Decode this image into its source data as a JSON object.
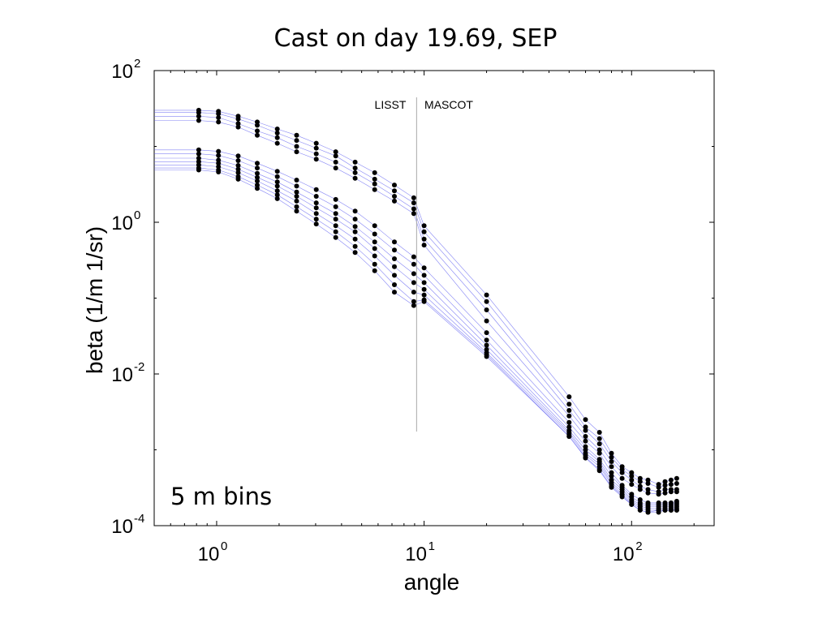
{
  "chart_data": {
    "type": "scatter",
    "title": "Cast on day 19.69, SEP",
    "xlabel": "angle",
    "ylabel": "beta (1/m 1/sr)",
    "x_scale": "log",
    "y_scale": "log",
    "xlim": [
      0.5,
      250
    ],
    "ylim": [
      0.0001,
      100
    ],
    "x_ticks": [
      {
        "base": "10",
        "exp": "0",
        "value": 1
      },
      {
        "base": "10",
        "exp": "1",
        "value": 10
      },
      {
        "base": "10",
        "exp": "2",
        "value": 100
      }
    ],
    "y_ticks": [
      {
        "base": "10",
        "exp": "2",
        "value": 100
      },
      {
        "base": "10",
        "exp": "0",
        "value": 1
      },
      {
        "base": "10",
        "exp": "-2",
        "value": 0.01
      },
      {
        "base": "10",
        "exp": "-4",
        "value": 0.0001
      }
    ],
    "annotations": {
      "left": "LISST",
      "right": "MASCOT",
      "bins": "5 m bins"
    },
    "divider_angle": 9.2,
    "line_color": "#5b5bf0",
    "marker_color": "#000000",
    "x": [
      0.82,
      1.02,
      1.27,
      1.57,
      1.96,
      2.43,
      3.02,
      3.75,
      4.65,
      5.78,
      7.19,
      8.92,
      10,
      20,
      50,
      60,
      70,
      80,
      90,
      100,
      110,
      120,
      135,
      145,
      155,
      165
    ],
    "series": [
      {
        "values": [
          30,
          29,
          25,
          21,
          17,
          14,
          11,
          8.5,
          6.2,
          4.5,
          3.1,
          2.1,
          0.9,
          0.11,
          0.005,
          0.0025,
          0.0017,
          0.0009,
          0.0006,
          0.0005,
          0.00042,
          0.0004,
          0.00035,
          0.00038,
          0.0004,
          0.00042
        ]
      },
      {
        "values": [
          28,
          27,
          23,
          19,
          15,
          12,
          9.5,
          7.5,
          5.2,
          3.7,
          2.6,
          1.8,
          0.75,
          0.09,
          0.004,
          0.002,
          0.0014,
          0.0008,
          0.00055,
          0.00045,
          0.00038,
          0.00036,
          0.00032,
          0.00034,
          0.00035,
          0.00036
        ]
      },
      {
        "values": [
          25,
          24,
          20,
          16,
          13,
          10,
          8,
          6.2,
          4.5,
          3.2,
          2.2,
          1.5,
          0.6,
          0.07,
          0.0033,
          0.0018,
          0.0012,
          0.0007,
          0.0005,
          0.0004,
          0.00033,
          0.0003,
          0.00028,
          0.0003,
          0.0003,
          0.0003
        ]
      },
      {
        "values": [
          22,
          21,
          18,
          14,
          11,
          8.5,
          6.8,
          5.2,
          3.8,
          2.7,
          1.9,
          1.3,
          0.5,
          0.05,
          0.0028,
          0.0015,
          0.001,
          0.0006,
          0.00042,
          0.00035,
          0.0003,
          0.00027,
          0.00026,
          0.00027,
          0.00028,
          0.00028
        ]
      },
      {
        "values": [
          9,
          8.6,
          7.5,
          6,
          4.7,
          3.6,
          2.7,
          2,
          1.4,
          0.9,
          0.55,
          0.35,
          0.25,
          0.035,
          0.0023,
          0.0013,
          0.0009,
          0.0005,
          0.00034,
          0.00026,
          0.00022,
          0.0002,
          0.0002,
          0.0002,
          0.0002,
          0.00021
        ]
      },
      {
        "values": [
          8,
          7.6,
          6.5,
          5.2,
          4,
          3,
          2.2,
          1.6,
          1.1,
          0.7,
          0.43,
          0.28,
          0.2,
          0.028,
          0.002,
          0.0011,
          0.00075,
          0.00045,
          0.00032,
          0.00024,
          0.0002,
          0.00019,
          0.00019,
          0.00019,
          0.00019,
          0.0002
        ]
      },
      {
        "values": [
          7,
          6.6,
          5.6,
          4.4,
          3.4,
          2.5,
          1.8,
          1.3,
          0.88,
          0.55,
          0.33,
          0.21,
          0.16,
          0.024,
          0.0018,
          0.001,
          0.0007,
          0.0004,
          0.0003,
          0.00022,
          0.00019,
          0.00018,
          0.00018,
          0.00018,
          0.00018,
          0.00019
        ]
      },
      {
        "values": [
          6.3,
          6,
          5,
          3.9,
          3,
          2.2,
          1.55,
          1.1,
          0.75,
          0.45,
          0.26,
          0.16,
          0.13,
          0.021,
          0.0017,
          0.0009,
          0.00065,
          0.00037,
          0.00028,
          0.00021,
          0.00018,
          0.00017,
          0.00017,
          0.00017,
          0.00017,
          0.00018
        ]
      },
      {
        "values": [
          5.7,
          5.4,
          4.5,
          3.5,
          2.6,
          1.9,
          1.3,
          0.9,
          0.6,
          0.36,
          0.2,
          0.12,
          0.11,
          0.019,
          0.0016,
          0.00085,
          0.0006,
          0.00035,
          0.00026,
          0.0002,
          0.00017,
          0.00016,
          0.00016,
          0.00016,
          0.00016,
          0.00017
        ]
      },
      {
        "values": [
          5.2,
          4.9,
          4,
          3.1,
          2.3,
          1.6,
          1.1,
          0.75,
          0.48,
          0.28,
          0.15,
          0.09,
          0.095,
          0.018,
          0.0015,
          0.0008,
          0.00055,
          0.00033,
          0.00025,
          0.00019,
          0.00016,
          0.00015,
          0.00016,
          0.00016,
          0.00016,
          0.00016
        ]
      },
      {
        "values": [
          4.9,
          4.6,
          3.7,
          2.8,
          2.05,
          1.4,
          0.95,
          0.63,
          0.4,
          0.23,
          0.12,
          0.08,
          0.09,
          0.017,
          0.0015,
          0.00078,
          0.00053,
          0.00032,
          0.00024,
          0.00019,
          0.00016,
          0.00015,
          0.00015,
          0.00016,
          0.00016,
          0.00016
        ]
      }
    ]
  }
}
